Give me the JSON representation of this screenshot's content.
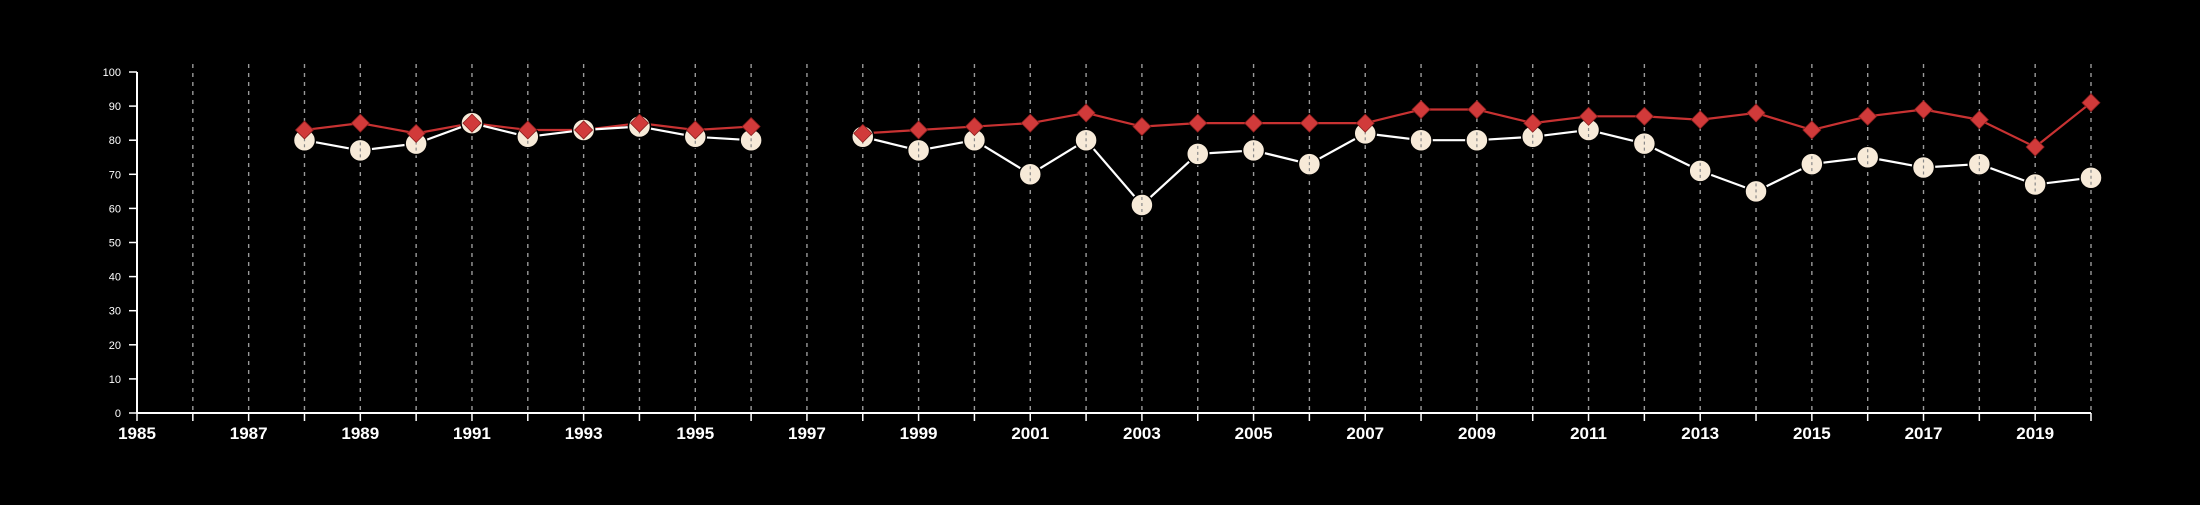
{
  "chart_data": {
    "type": "line",
    "title": "",
    "xlabel": "",
    "ylabel": "",
    "xlim": [
      1985,
      2020
    ],
    "ylim": [
      0,
      100
    ],
    "x_ticks": [
      1985,
      1987,
      1989,
      1991,
      1993,
      1995,
      1997,
      1999,
      2001,
      2003,
      2005,
      2007,
      2009,
      2011,
      2013,
      2015,
      2017,
      2019
    ],
    "y_ticks": [
      0,
      10,
      20,
      30,
      40,
      50,
      60,
      70,
      80,
      90,
      100
    ],
    "vertical_grid": "dashed, every year",
    "horizontal_grid": false,
    "legend": "none",
    "series": [
      {
        "marker": "circle",
        "color": "#f7ead8",
        "line_color": "#ffffff",
        "segments": [
          {
            "x": [
              1988,
              1989,
              1990,
              1991,
              1992,
              1993,
              1994,
              1995,
              1996
            ],
            "values": [
              80,
              77,
              79,
              85,
              81,
              83,
              84,
              81,
              80
            ]
          },
          {
            "x": [
              1998,
              1999,
              2000,
              2001,
              2002,
              2003,
              2004,
              2005,
              2006,
              2007,
              2008,
              2009,
              2010,
              2011,
              2012,
              2013,
              2014,
              2015,
              2016,
              2017,
              2018,
              2019,
              2020
            ],
            "values": [
              81,
              77,
              80,
              70,
              80,
              61,
              76,
              77,
              73,
              82,
              80,
              80,
              81,
              83,
              79,
              71,
              65,
              73,
              75,
              72,
              73,
              67,
              69
            ]
          }
        ]
      },
      {
        "marker": "diamond",
        "color": "#d13a3a",
        "line_color": "#c83232",
        "segments": [
          {
            "x": [
              1988,
              1989,
              1990,
              1991,
              1992,
              1993,
              1994,
              1995,
              1996
            ],
            "values": [
              83,
              85,
              82,
              85,
              83,
              83,
              85,
              83,
              84
            ]
          },
          {
            "x": [
              1998,
              1999,
              2000,
              2001,
              2002,
              2003,
              2004,
              2005,
              2006,
              2007,
              2008,
              2009,
              2010,
              2011,
              2012,
              2013,
              2014,
              2015,
              2016,
              2017,
              2018,
              2019,
              2020
            ],
            "values": [
              82,
              83,
              84,
              85,
              88,
              84,
              85,
              85,
              85,
              85,
              89,
              89,
              85,
              87,
              87,
              86,
              88,
              83,
              87,
              89,
              86,
              78,
              91
            ]
          }
        ]
      }
    ]
  }
}
